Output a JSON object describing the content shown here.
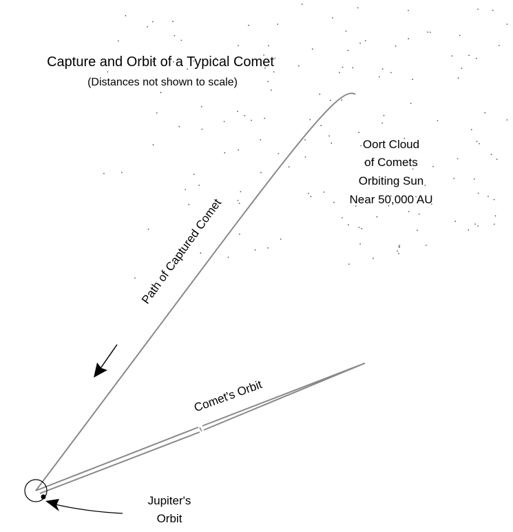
{
  "header": {
    "title": "Capture and Orbit of a Typical Comet",
    "subtitle": "(Distances not shown to scale)"
  },
  "labels": {
    "oort_cloud": [
      "Oort Cloud",
      "of Comets",
      "Orbiting Sun",
      "Near 50,000 AU"
    ],
    "path": "Path of Captured Comet",
    "orbit": "Comet's Orbit",
    "jupiter": [
      "Jupiter's",
      "Orbit"
    ]
  }
}
